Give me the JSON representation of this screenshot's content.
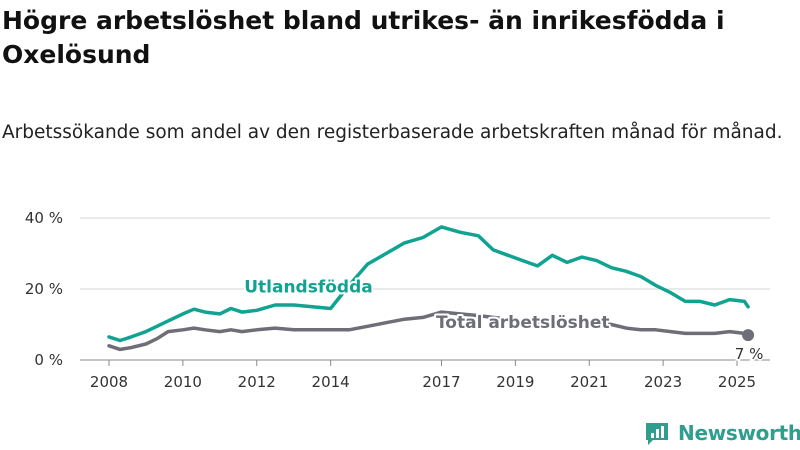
{
  "title": "Högre arbetslöshet bland utrikes- än inrikesfödda i Oxelösund",
  "subtitle": "Arbetssökande som andel av den registerbaserade arbetskraften månad för månad.",
  "brand": {
    "name": "Newsworthy",
    "icon": "newsworthy-logo-icon"
  },
  "colors": {
    "utlandsfodda": "#11a392",
    "total": "#6e6e78",
    "grid": "#d4d4d4",
    "brand": "#2f9e8e"
  },
  "chart_data": {
    "type": "line",
    "xlabel": "",
    "ylabel": "",
    "xlim": [
      2008,
      2025.5
    ],
    "ylim": [
      0,
      40
    ],
    "x_ticks": [
      "2008",
      "2010",
      "2012",
      "2014",
      "2017",
      "2019",
      "2021",
      "2023",
      "2025"
    ],
    "y_ticks": [
      0,
      20,
      40
    ],
    "y_tick_labels": [
      "0 %",
      "20 %",
      "40 %"
    ],
    "grid": true,
    "end_label": "7 %",
    "series": [
      {
        "name": "Utlandsfödda",
        "label_x": 2013.4,
        "label_y": 19,
        "points": [
          [
            2008.0,
            6.5
          ],
          [
            2008.3,
            5.5
          ],
          [
            2008.6,
            6.5
          ],
          [
            2009.0,
            8.0
          ],
          [
            2009.3,
            9.5
          ],
          [
            2009.6,
            11.0
          ],
          [
            2010.0,
            13.0
          ],
          [
            2010.3,
            14.3
          ],
          [
            2010.6,
            13.5
          ],
          [
            2011.0,
            13.0
          ],
          [
            2011.3,
            14.5
          ],
          [
            2011.6,
            13.5
          ],
          [
            2012.0,
            14.0
          ],
          [
            2012.5,
            15.5
          ],
          [
            2013.0,
            15.5
          ],
          [
            2013.5,
            15.0
          ],
          [
            2014.0,
            14.5
          ],
          [
            2014.5,
            21.0
          ],
          [
            2015.0,
            27.0
          ],
          [
            2015.5,
            30.0
          ],
          [
            2016.0,
            33.0
          ],
          [
            2016.5,
            34.5
          ],
          [
            2017.0,
            37.5
          ],
          [
            2017.5,
            36.0
          ],
          [
            2018.0,
            35.0
          ],
          [
            2018.4,
            31.0
          ],
          [
            2018.8,
            29.5
          ],
          [
            2019.2,
            28.0
          ],
          [
            2019.6,
            26.5
          ],
          [
            2020.0,
            29.5
          ],
          [
            2020.4,
            27.5
          ],
          [
            2020.8,
            29.0
          ],
          [
            2021.2,
            28.0
          ],
          [
            2021.6,
            26.0
          ],
          [
            2022.0,
            25.0
          ],
          [
            2022.4,
            23.5
          ],
          [
            2022.8,
            21.0
          ],
          [
            2023.2,
            19.0
          ],
          [
            2023.6,
            16.5
          ],
          [
            2024.0,
            16.5
          ],
          [
            2024.4,
            15.5
          ],
          [
            2024.8,
            17.0
          ],
          [
            2025.2,
            16.5
          ],
          [
            2025.3,
            15.0
          ]
        ]
      },
      {
        "name": "Total arbetslöshet",
        "label_x": 2019.2,
        "label_y": 9,
        "points": [
          [
            2008.0,
            4.0
          ],
          [
            2008.3,
            3.0
          ],
          [
            2008.6,
            3.5
          ],
          [
            2009.0,
            4.5
          ],
          [
            2009.3,
            6.0
          ],
          [
            2009.6,
            8.0
          ],
          [
            2010.0,
            8.5
          ],
          [
            2010.3,
            9.0
          ],
          [
            2010.6,
            8.5
          ],
          [
            2011.0,
            8.0
          ],
          [
            2011.3,
            8.5
          ],
          [
            2011.6,
            8.0
          ],
          [
            2012.0,
            8.5
          ],
          [
            2012.5,
            9.0
          ],
          [
            2013.0,
            8.5
          ],
          [
            2013.5,
            8.5
          ],
          [
            2014.0,
            8.5
          ],
          [
            2014.5,
            8.5
          ],
          [
            2015.0,
            9.5
          ],
          [
            2015.5,
            10.5
          ],
          [
            2016.0,
            11.5
          ],
          [
            2016.5,
            12.0
          ],
          [
            2017.0,
            13.5
          ],
          [
            2017.5,
            13.0
          ],
          [
            2018.0,
            12.5
          ],
          [
            2018.4,
            12.0
          ],
          [
            2018.8,
            11.5
          ],
          [
            2019.2,
            11.0
          ],
          [
            2019.6,
            10.5
          ],
          [
            2020.0,
            11.5
          ],
          [
            2020.4,
            11.0
          ],
          [
            2020.8,
            11.0
          ],
          [
            2021.2,
            10.5
          ],
          [
            2021.6,
            10.0
          ],
          [
            2022.0,
            9.0
          ],
          [
            2022.4,
            8.5
          ],
          [
            2022.8,
            8.5
          ],
          [
            2023.2,
            8.0
          ],
          [
            2023.6,
            7.5
          ],
          [
            2024.0,
            7.5
          ],
          [
            2024.4,
            7.5
          ],
          [
            2024.8,
            8.0
          ],
          [
            2025.2,
            7.5
          ],
          [
            2025.3,
            7.0
          ]
        ]
      }
    ]
  }
}
